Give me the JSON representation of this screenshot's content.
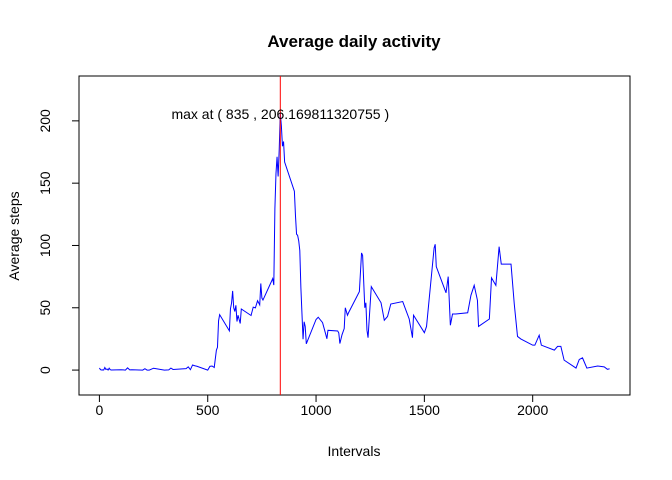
{
  "chart_data": {
    "type": "line",
    "title": "Average daily activity",
    "x_label": "Intervals",
    "y_label": "Average steps",
    "annotation": "max at ( 835 ,  206.169811320755 )",
    "vline": 835,
    "vline_color": "#ff0000",
    "x": [
      0,
      5,
      10,
      15,
      20,
      25,
      30,
      35,
      40,
      45,
      50,
      55,
      100,
      110,
      120,
      130,
      140,
      150,
      200,
      210,
      220,
      230,
      250,
      300,
      320,
      330,
      340,
      400,
      410,
      420,
      430,
      440,
      450,
      500,
      510,
      520,
      530,
      540,
      545,
      550,
      555,
      600,
      605,
      610,
      615,
      620,
      625,
      630,
      635,
      640,
      650,
      655,
      700,
      710,
      720,
      730,
      740,
      745,
      750,
      755,
      800,
      805,
      810,
      815,
      820,
      825,
      830,
      835,
      840,
      845,
      850,
      855,
      900,
      905,
      910,
      915,
      920,
      925,
      930,
      935,
      940,
      945,
      950,
      955,
      1000,
      1010,
      1030,
      1045,
      1050,
      1055,
      1100,
      1105,
      1110,
      1120,
      1130,
      1135,
      1145,
      1150,
      1200,
      1210,
      1215,
      1225,
      1230,
      1235,
      1240,
      1255,
      1300,
      1315,
      1330,
      1345,
      1400,
      1415,
      1430,
      1445,
      1450,
      1500,
      1510,
      1545,
      1550,
      1555,
      1600,
      1610,
      1620,
      1630,
      1645,
      1700,
      1715,
      1730,
      1745,
      1750,
      1800,
      1810,
      1830,
      1845,
      1855,
      1900,
      1915,
      1930,
      1945,
      2000,
      2010,
      2030,
      2040,
      2100,
      2115,
      2130,
      2145,
      2200,
      2215,
      2230,
      2250,
      2300,
      2330,
      2345,
      2355
    ],
    "series": [
      {
        "color": "#0000ff",
        "values": [
          1.7,
          0.3,
          0.1,
          0.2,
          0.1,
          2.1,
          0.5,
          0.9,
          0,
          1.5,
          0.3,
          0.1,
          0.3,
          0.2,
          0,
          1.8,
          0.2,
          0.3,
          0,
          1.1,
          0,
          0,
          1.5,
          0,
          0.2,
          1.6,
          0.5,
          1.2,
          2.6,
          0.3,
          4.1,
          3.5,
          3.1,
          0,
          3,
          3.3,
          2.1,
          16,
          18.3,
          39.5,
          44.5,
          31.5,
          49.3,
          53.8,
          63.5,
          50,
          47,
          52,
          39,
          44,
          37.4,
          49,
          43.8,
          50.5,
          49.9,
          55.7,
          52.3,
          69.5,
          57.8,
          56.2,
          73.4,
          68.2,
          129.4,
          157.5,
          171.2,
          155.4,
          177.3,
          206.169811320755,
          195.9,
          179.6,
          183.4,
          167,
          143.5,
          124,
          109.1,
          108.1,
          103.7,
          95.9,
          66.2,
          45.2,
          24.8,
          38.8,
          35,
          21.1,
          40.6,
          42.4,
          38.1,
          28.5,
          25.1,
          31.9,
          31.4,
          29.7,
          21.3,
          28.4,
          33.3,
          50,
          44,
          46,
          63,
          94,
          92,
          50,
          54,
          32,
          26,
          67,
          54,
          40,
          43,
          53,
          55,
          48,
          41,
          26,
          44,
          30,
          35,
          98,
          101,
          83,
          62,
          75,
          36,
          45,
          45,
          46,
          60,
          68,
          56,
          35,
          41,
          74,
          68,
          99,
          85,
          85,
          53,
          27,
          25,
          20,
          20,
          28,
          20,
          16,
          19,
          19,
          8,
          1.6,
          8.5,
          9.8,
          1.6,
          3.3,
          2.6,
          0.6,
          1.1
        ]
      }
    ],
    "xlim": [
      -94.2,
      2449.2
    ],
    "xticks": [
      0,
      500,
      1000,
      1500,
      2000
    ],
    "ylim": [
      -20,
      236
    ],
    "yticks": [
      0,
      50,
      100,
      150,
      200
    ]
  }
}
